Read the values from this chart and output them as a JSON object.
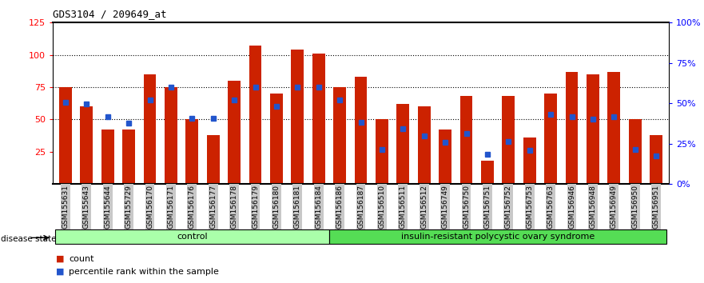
{
  "title": "GDS3104 / 209649_at",
  "samples": [
    "GSM155631",
    "GSM155643",
    "GSM155644",
    "GSM155729",
    "GSM156170",
    "GSM156171",
    "GSM156176",
    "GSM156177",
    "GSM156178",
    "GSM156179",
    "GSM156180",
    "GSM156181",
    "GSM156184",
    "GSM156186",
    "GSM156187",
    "GSM156510",
    "GSM156511",
    "GSM156512",
    "GSM156749",
    "GSM156750",
    "GSM156751",
    "GSM156752",
    "GSM156753",
    "GSM156763",
    "GSM156946",
    "GSM156948",
    "GSM156949",
    "GSM156950",
    "GSM156951"
  ],
  "red_values": [
    75,
    60,
    42,
    42,
    85,
    75,
    50,
    38,
    80,
    107,
    70,
    104,
    101,
    75,
    83,
    50,
    62,
    60,
    42,
    68,
    18,
    68,
    36,
    70,
    87,
    85,
    87,
    50,
    38
  ],
  "blue_values": [
    63,
    62,
    52,
    47,
    65,
    75,
    51,
    51,
    65,
    75,
    60,
    75,
    75,
    65,
    48,
    27,
    43,
    37,
    32,
    39,
    23,
    33,
    26,
    54,
    52,
    50,
    52,
    27,
    22
  ],
  "control_count": 13,
  "disease_count": 16,
  "bar_color": "#CC2200",
  "blue_color": "#2255CC",
  "ylim_left": [
    0,
    125
  ],
  "ylim_right": [
    0,
    100
  ],
  "yticks_left": [
    25,
    50,
    75,
    100,
    125
  ],
  "yticks_right": [
    0,
    25,
    50,
    75,
    100
  ],
  "ytick_labels_right": [
    "0%",
    "25%",
    "50%",
    "75%",
    "100%"
  ],
  "tick_bg_color": "#C8C8C8",
  "control_color": "#AAFFAA",
  "disease_color": "#55DD55",
  "legend_count_label": "count",
  "legend_pct_label": "percentile rank within the sample",
  "disease_state_label": "disease state",
  "control_label": "control",
  "disease_label": "insulin-resistant polycystic ovary syndrome"
}
